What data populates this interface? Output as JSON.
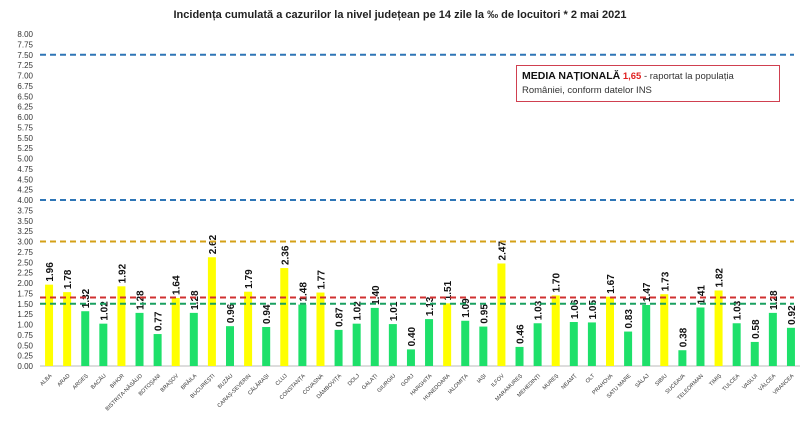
{
  "chart_data": {
    "type": "bar",
    "title": "Incidența cumulată a cazurilor la nivel județean pe 14 zile la ‰ de locuitori *   2 mai 2021",
    "categories": [
      "ALBA",
      "ARAD",
      "ARGEȘ",
      "BACĂU",
      "BIHOR",
      "BISTRIȚA-NĂSĂUD",
      "BOTOȘANI",
      "BRAȘOV",
      "BRĂILA",
      "BUCUREȘTI",
      "BUZĂU",
      "CARAȘ-SEVERIN",
      "CĂLĂRAȘI",
      "CLUJ",
      "CONSTANȚA",
      "COVASNA",
      "DÂMBOVIȚA",
      "DOLJ",
      "GALAȚI",
      "GIURGIU",
      "GORJ",
      "HARGHITA",
      "HUNEDOARA",
      "IALOMIȚA",
      "IAȘI",
      "ILFOV",
      "MARAMUREȘ",
      "MEHEDINȚI",
      "MUREȘ",
      "NEAMȚ",
      "OLT",
      "PRAHOVA",
      "SATU MARE",
      "SĂLAJ",
      "SIBIU",
      "SUCEAVA",
      "TELEORMAN",
      "TIMIȘ",
      "TULCEA",
      "VASLUI",
      "VÂLCEA",
      "VRANCEA"
    ],
    "values": [
      1.96,
      1.78,
      1.32,
      1.02,
      1.92,
      1.28,
      0.77,
      1.64,
      1.28,
      2.62,
      0.96,
      1.79,
      0.94,
      2.36,
      1.48,
      1.77,
      0.87,
      1.02,
      1.4,
      1.01,
      0.4,
      1.13,
      1.51,
      1.09,
      0.95,
      2.47,
      0.46,
      1.03,
      1.7,
      1.06,
      1.05,
      1.67,
      0.83,
      1.47,
      1.73,
      0.38,
      1.41,
      1.82,
      1.03,
      0.58,
      1.28,
      0.92
    ],
    "ylim": [
      0,
      8
    ],
    "yticks": [
      "0.00",
      "0.25",
      "0.50",
      "0.75",
      "1.00",
      "1.25",
      "1.50",
      "1.75",
      "2.00",
      "2.25",
      "2.50",
      "2.75",
      "3.00",
      "3.25",
      "3.50",
      "3.75",
      "4.00",
      "4.25",
      "4.50",
      "4.75",
      "5.00",
      "5.25",
      "5.50",
      "5.75",
      "6.00",
      "6.25",
      "6.50",
      "6.75",
      "7.00",
      "7.25",
      "7.50",
      "7.75",
      "8.00"
    ],
    "threshold_lines": [
      {
        "value": 7.5,
        "color": "#2e75b6"
      },
      {
        "value": 4.0,
        "color": "#2e75b6"
      },
      {
        "value": 3.0,
        "color": "#d4a017"
      },
      {
        "value": 1.65,
        "color": "#d03030"
      },
      {
        "value": 1.5,
        "color": "#1aa060"
      }
    ],
    "colors": {
      "above": "#ffff00",
      "below": "#1ee06a"
    },
    "color_threshold": 1.5,
    "grid": false,
    "annotation": {
      "label": "MEDIA NAȚIONALĂ",
      "value": "1,65",
      "text": "- raportat la populația României, conform datelor INS"
    }
  }
}
